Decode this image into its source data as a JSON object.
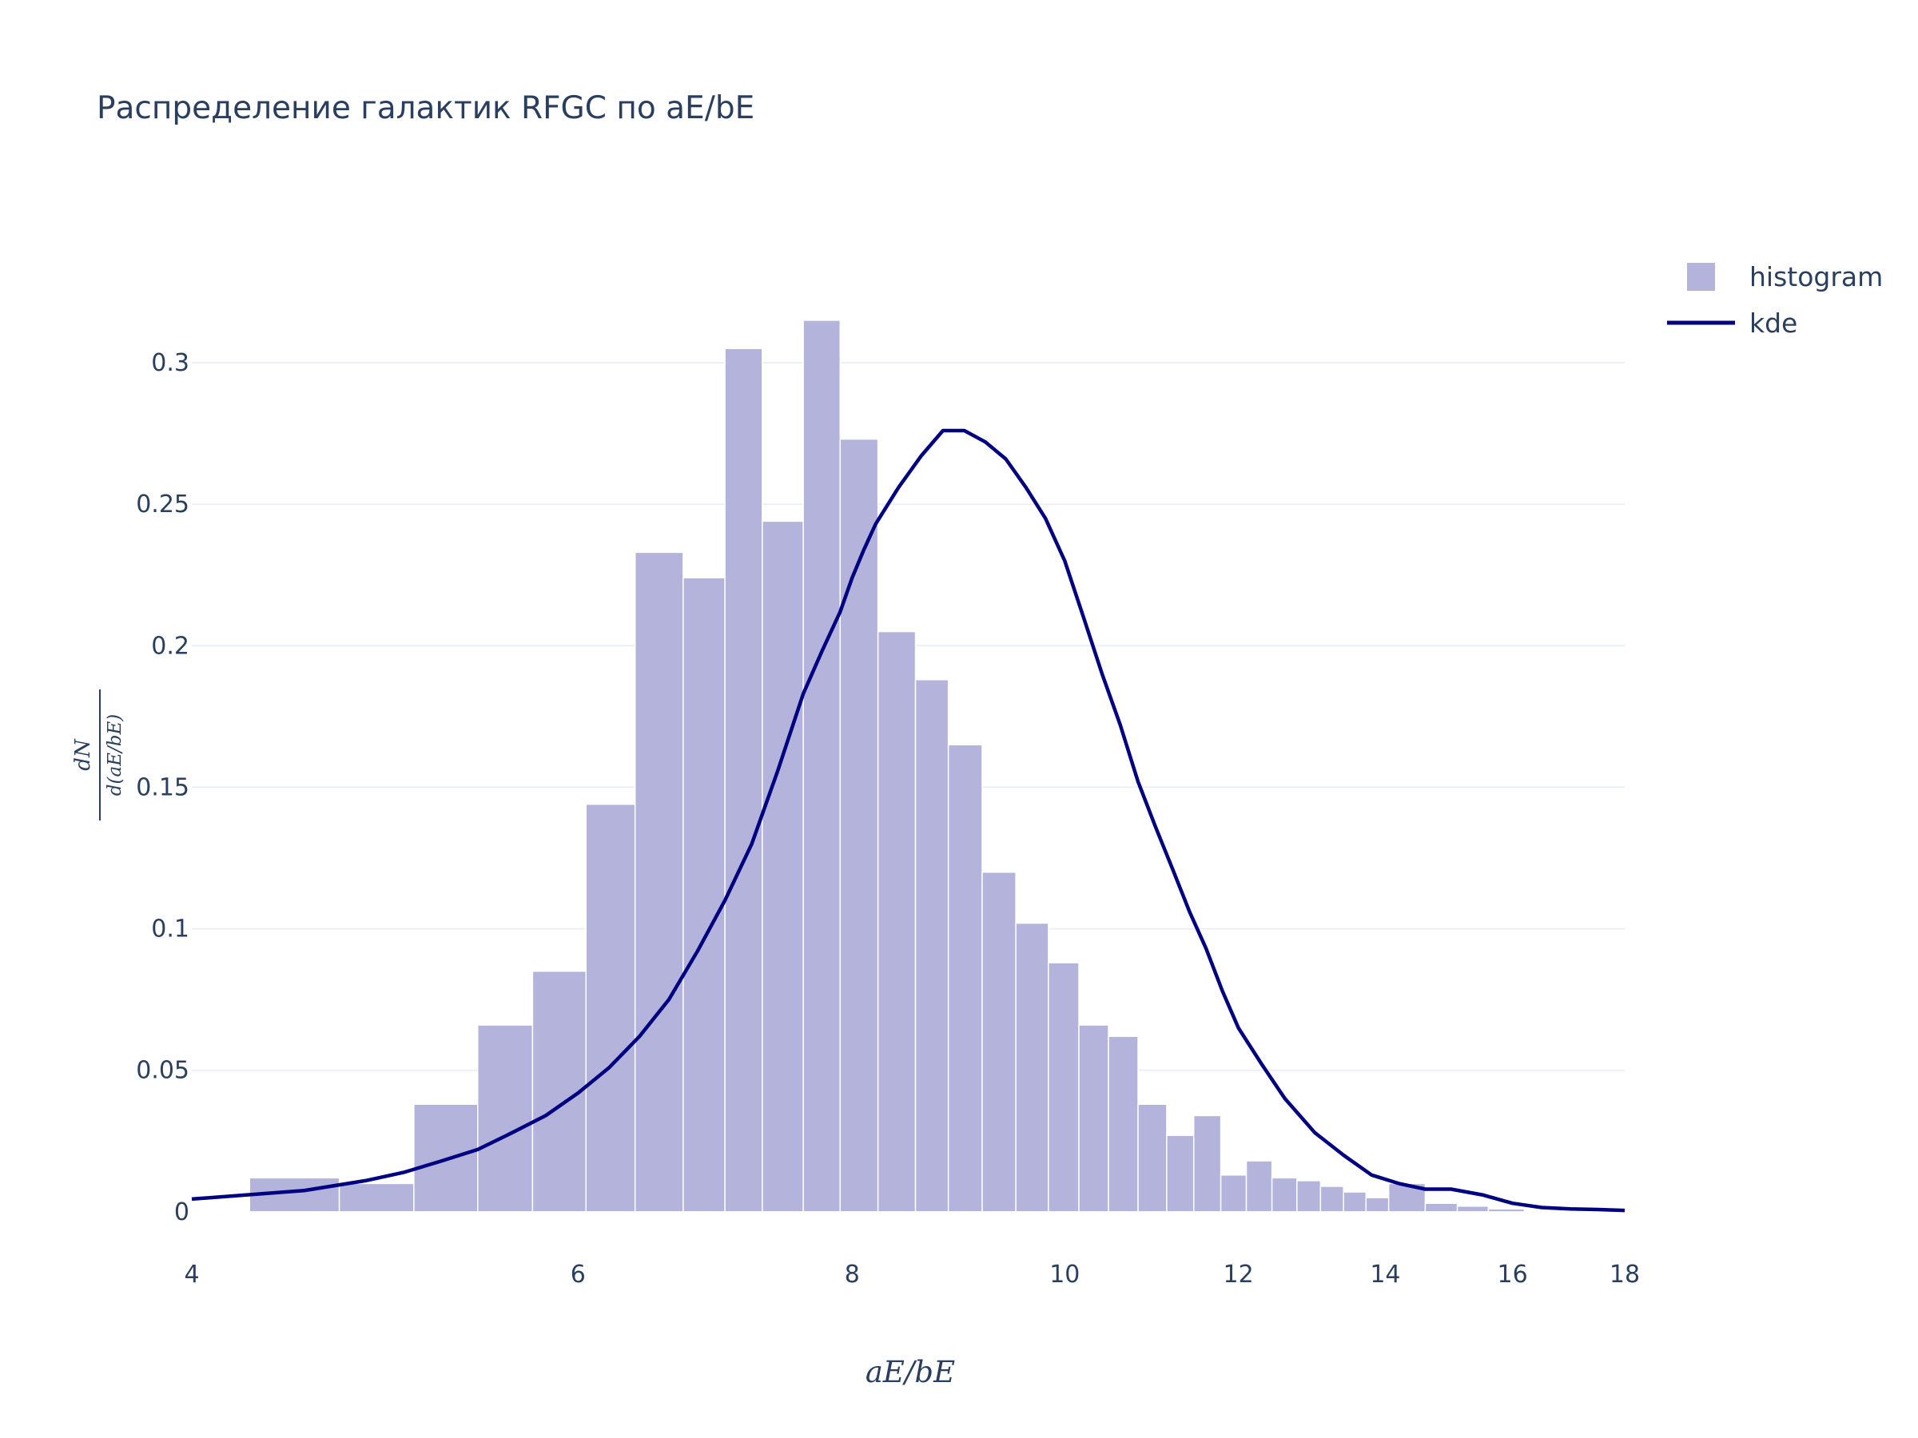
{
  "chart_data": {
    "type": "bar",
    "title": "Распределение галактик RFGC по aE/bE",
    "xlabel": "aE/bE",
    "ylabel_numerator": "dN",
    "ylabel_denominator": "d(aE/bE)",
    "x_scale": "log",
    "xlim": [
      4,
      18
    ],
    "ylim": [
      -0.015,
      0.335
    ],
    "x_ticks": [
      4,
      6,
      8,
      10,
      12,
      14,
      16,
      18
    ],
    "x_tick_labels": [
      "4",
      "6",
      "8",
      "10",
      "12",
      "14",
      "16",
      "18"
    ],
    "y_ticks": [
      0,
      0.05,
      0.1,
      0.15,
      0.2,
      0.25,
      0.3
    ],
    "y_tick_labels": [
      "0",
      "0.05",
      "0.1",
      "0.15",
      "0.2",
      "0.25",
      "0.3"
    ],
    "grid": true,
    "legend_position": "top-right",
    "colors": {
      "histogram": "#b3b3dc",
      "kde": "#000080",
      "grid": "#ebf0f8"
    },
    "series": [
      {
        "name": "histogram",
        "kind": "bar",
        "bins": [
          {
            "x0": 4.25,
            "x1": 4.67,
            "value": 0.012
          },
          {
            "x0": 4.67,
            "x1": 5.05,
            "value": 0.01
          },
          {
            "x0": 5.05,
            "x1": 5.4,
            "value": 0.038
          },
          {
            "x0": 5.4,
            "x1": 5.72,
            "value": 0.066
          },
          {
            "x0": 5.72,
            "x1": 6.05,
            "value": 0.085
          },
          {
            "x0": 6.05,
            "x1": 6.37,
            "value": 0.144
          },
          {
            "x0": 6.37,
            "x1": 6.7,
            "value": 0.233
          },
          {
            "x0": 6.7,
            "x1": 7.0,
            "value": 0.224
          },
          {
            "x0": 7.0,
            "x1": 7.28,
            "value": 0.305
          },
          {
            "x0": 7.28,
            "x1": 7.6,
            "value": 0.244
          },
          {
            "x0": 7.6,
            "x1": 7.9,
            "value": 0.315
          },
          {
            "x0": 7.9,
            "x1": 8.22,
            "value": 0.273
          },
          {
            "x0": 8.22,
            "x1": 8.55,
            "value": 0.205
          },
          {
            "x0": 8.55,
            "x1": 8.85,
            "value": 0.188
          },
          {
            "x0": 8.85,
            "x1": 9.17,
            "value": 0.165
          },
          {
            "x0": 9.17,
            "x1": 9.5,
            "value": 0.12
          },
          {
            "x0": 9.5,
            "x1": 9.83,
            "value": 0.102
          },
          {
            "x0": 9.83,
            "x1": 10.15,
            "value": 0.088
          },
          {
            "x0": 10.15,
            "x1": 10.47,
            "value": 0.066
          },
          {
            "x0": 10.47,
            "x1": 10.8,
            "value": 0.062
          },
          {
            "x0": 10.8,
            "x1": 11.13,
            "value": 0.038
          },
          {
            "x0": 11.13,
            "x1": 11.45,
            "value": 0.027
          },
          {
            "x0": 11.45,
            "x1": 11.78,
            "value": 0.034
          },
          {
            "x0": 11.78,
            "x1": 12.1,
            "value": 0.013
          },
          {
            "x0": 12.1,
            "x1": 12.43,
            "value": 0.018
          },
          {
            "x0": 12.43,
            "x1": 12.76,
            "value": 0.012
          },
          {
            "x0": 12.76,
            "x1": 13.08,
            "value": 0.011
          },
          {
            "x0": 13.08,
            "x1": 13.4,
            "value": 0.009
          },
          {
            "x0": 13.4,
            "x1": 13.72,
            "value": 0.007
          },
          {
            "x0": 13.72,
            "x1": 14.05,
            "value": 0.005
          },
          {
            "x0": 14.05,
            "x1": 14.6,
            "value": 0.01
          },
          {
            "x0": 14.6,
            "x1": 15.1,
            "value": 0.003
          },
          {
            "x0": 15.1,
            "x1": 15.6,
            "value": 0.002
          },
          {
            "x0": 15.6,
            "x1": 16.2,
            "value": 0.001
          }
        ]
      },
      {
        "name": "kde",
        "kind": "line",
        "x": [
          4.0,
          4.5,
          4.8,
          5.0,
          5.2,
          5.4,
          5.6,
          5.8,
          6.0,
          6.2,
          6.4,
          6.6,
          6.8,
          7.0,
          7.2,
          7.4,
          7.6,
          7.75,
          7.9,
          8.0,
          8.1,
          8.2,
          8.4,
          8.6,
          8.8,
          9.0,
          9.2,
          9.4,
          9.6,
          9.8,
          10.0,
          10.2,
          10.4,
          10.6,
          10.8,
          11.0,
          11.2,
          11.4,
          11.6,
          11.8,
          12.0,
          12.3,
          12.6,
          13.0,
          13.4,
          13.8,
          14.2,
          14.6,
          15.0,
          15.5,
          16.0,
          16.5,
          17.0,
          17.5,
          18.0
        ],
        "y": [
          0.0045,
          0.0075,
          0.011,
          0.014,
          0.018,
          0.022,
          0.028,
          0.034,
          0.042,
          0.051,
          0.062,
          0.075,
          0.092,
          0.11,
          0.13,
          0.156,
          0.183,
          0.198,
          0.212,
          0.224,
          0.234,
          0.243,
          0.256,
          0.267,
          0.276,
          0.276,
          0.272,
          0.266,
          0.256,
          0.245,
          0.23,
          0.21,
          0.19,
          0.172,
          0.152,
          0.136,
          0.121,
          0.106,
          0.093,
          0.078,
          0.065,
          0.052,
          0.04,
          0.028,
          0.02,
          0.013,
          0.01,
          0.008,
          0.008,
          0.006,
          0.003,
          0.0015,
          0.001,
          0.0008,
          0.0005
        ]
      }
    ]
  }
}
